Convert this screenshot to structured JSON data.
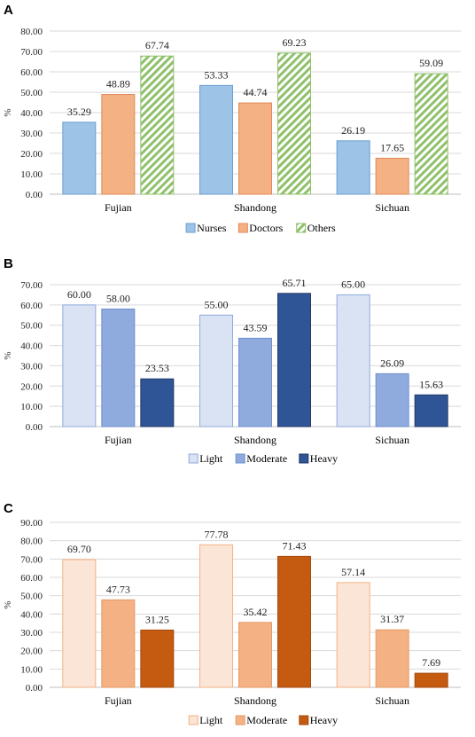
{
  "chart_data": [
    {
      "panel": "A",
      "type": "bar",
      "ylabel": "%",
      "ylim": [
        0,
        80
      ],
      "yticks": [
        "0.00",
        "10.00",
        "20.00",
        "30.00",
        "40.00",
        "50.00",
        "60.00",
        "70.00",
        "80.00"
      ],
      "grid": true,
      "legend_position": "bottom",
      "categories": [
        "Fujian",
        "Shandong",
        "Sichuan"
      ],
      "series": [
        {
          "name": "Nurses",
          "values": [
            35.29,
            53.33,
            26.19
          ],
          "labels": [
            "35.29",
            "53.33",
            "26.19"
          ],
          "color": "#9dc3e6",
          "stroke": "#6a9fd0",
          "pattern": false
        },
        {
          "name": "Doctors",
          "values": [
            48.89,
            44.74,
            17.65
          ],
          "labels": [
            "48.89",
            "44.74",
            "17.65"
          ],
          "color": "#f4b183",
          "stroke": "#e0895a",
          "pattern": false
        },
        {
          "name": "Others",
          "values": [
            67.74,
            69.23,
            59.09
          ],
          "labels": [
            "67.74",
            "69.23",
            "59.09"
          ],
          "color": "#8fc06a",
          "stroke": "#8fc06a",
          "pattern": true
        }
      ]
    },
    {
      "panel": "B",
      "type": "bar",
      "ylabel": "%",
      "ylim": [
        0,
        70
      ],
      "yticks": [
        "0.00",
        "10.00",
        "20.00",
        "30.00",
        "40.00",
        "50.00",
        "60.00",
        "70.00"
      ],
      "grid": true,
      "legend_position": "bottom",
      "categories": [
        "Fujian",
        "Shandong",
        "Sichuan"
      ],
      "series": [
        {
          "name": "Light",
          "values": [
            60.0,
            55.0,
            65.0
          ],
          "labels": [
            "60.00",
            "55.00",
            "65.00"
          ],
          "color": "#dae3f3",
          "stroke": "#8faadc",
          "pattern": false
        },
        {
          "name": "Moderate",
          "values": [
            58.0,
            43.59,
            26.09
          ],
          "labels": [
            "58.00",
            "43.59",
            "26.09"
          ],
          "color": "#8faadc",
          "stroke": "#6f8fcf",
          "pattern": false
        },
        {
          "name": "Heavy",
          "values": [
            23.53,
            65.71,
            15.63
          ],
          "labels": [
            "23.53",
            "65.71",
            "15.63"
          ],
          "color": "#2f5597",
          "stroke": "#203864",
          "pattern": false
        }
      ]
    },
    {
      "panel": "C",
      "type": "bar",
      "ylabel": "%",
      "ylim": [
        0,
        90
      ],
      "yticks": [
        "0.00",
        "10.00",
        "20.00",
        "30.00",
        "40.00",
        "50.00",
        "60.00",
        "70.00",
        "80.00",
        "90.00"
      ],
      "grid": true,
      "legend_position": "bottom",
      "categories": [
        "Fujian",
        "Shandong",
        "Sichuan"
      ],
      "series": [
        {
          "name": "Light",
          "values": [
            69.7,
            77.78,
            57.14
          ],
          "labels": [
            "69.70",
            "77.78",
            "57.14"
          ],
          "color": "#fbe5d6",
          "stroke": "#f4b183",
          "pattern": false
        },
        {
          "name": "Moderate",
          "values": [
            47.73,
            35.42,
            31.37
          ],
          "labels": [
            "47.73",
            "35.42",
            "31.37"
          ],
          "color": "#f4b183",
          "stroke": "#e59a63",
          "pattern": false
        },
        {
          "name": "Heavy",
          "values": [
            31.25,
            71.43,
            7.69
          ],
          "labels": [
            "31.25",
            "71.43",
            "7.69"
          ],
          "color": "#c55a11",
          "stroke": "#a44a0e",
          "pattern": false
        }
      ]
    }
  ]
}
